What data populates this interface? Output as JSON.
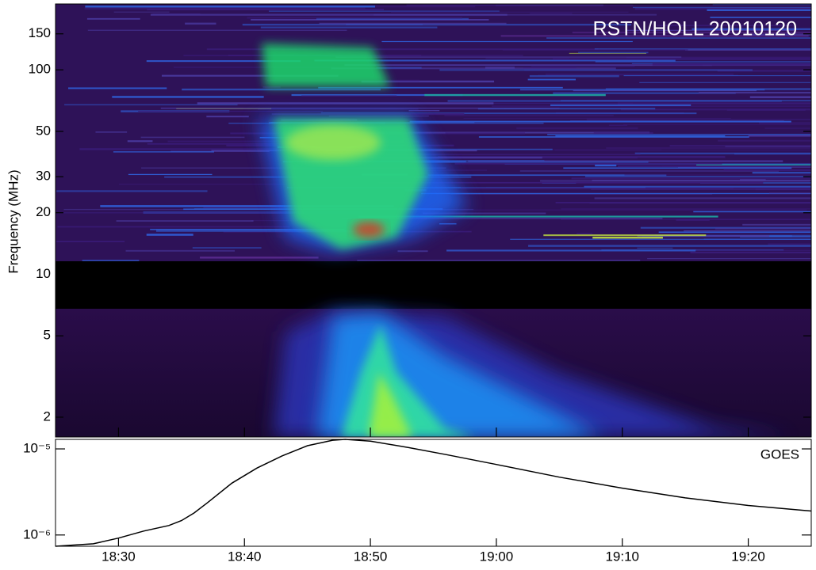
{
  "chart_data": [
    {
      "type": "spectrogram",
      "title": "RSTN/HOLL 20010120",
      "y_label": "Frequency (MHz)",
      "yscale": "log",
      "ylim": [
        1.6,
        210
      ],
      "yticks": [
        150,
        100,
        50,
        30,
        20,
        10,
        5,
        2
      ]
    },
    {
      "type": "line",
      "annotation": "GOES",
      "yscale": "log",
      "x": [
        "18:25",
        "18:28",
        "18:30",
        "18:32",
        "18:34",
        "18:35",
        "18:36",
        "18:37",
        "18:39",
        "18:41",
        "18:43",
        "18:45",
        "18:47",
        "18:48",
        "18:50",
        "18:53",
        "18:56",
        "19:00",
        "19:05",
        "19:10",
        "19:15",
        "19:20",
        "19:25"
      ],
      "values": [
        7.4e-07,
        7.9e-07,
        9.2e-07,
        1.11e-06,
        1.29e-06,
        1.47e-06,
        1.8e-06,
        2.33e-06,
        4e-06,
        6e-06,
        8.3e-06,
        1.09e-05,
        1.26e-05,
        1.29e-05,
        1.23e-05,
        1.04e-05,
        8.6e-06,
        6.6e-06,
        4.7e-06,
        3.5e-06,
        2.7e-06,
        2.2e-06,
        1.9e-06
      ],
      "color": "#000000",
      "xlim": [
        "18:25",
        "19:25"
      ],
      "xticks": [
        "18:30",
        "18:40",
        "18:50",
        "19:00",
        "19:10",
        "19:20"
      ],
      "ylim": [
        7.4e-07,
        1.29e-05
      ],
      "yticks": [
        {
          "value": 1e-05,
          "label": "10⁻⁵"
        },
        {
          "value": 1e-06,
          "label": "10⁻⁶"
        }
      ]
    }
  ]
}
